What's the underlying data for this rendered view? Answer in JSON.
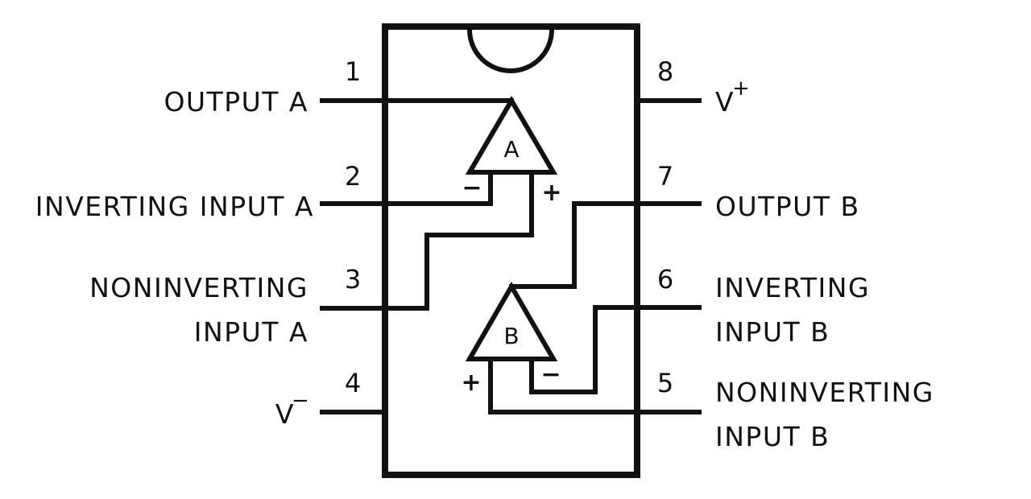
{
  "pins": {
    "p1": "1",
    "p2": "2",
    "p3": "3",
    "p4": "4",
    "p5": "5",
    "p6": "6",
    "p7": "7",
    "p8": "8"
  },
  "labels": {
    "output_a": "OUTPUT A",
    "inverting_input_a": "INVERTING INPUT A",
    "noninverting_input_a_line1": "NONINVERTING",
    "noninverting_input_a_line2": "INPUT A",
    "v_minus_base": "V",
    "v_minus_sup": "−",
    "v_plus_base": "V",
    "v_plus_sup": "+",
    "output_b": "OUTPUT B",
    "inverting_input_b_line1": "INVERTING",
    "inverting_input_b_line2": "INPUT B",
    "noninverting_input_b_line1": "NONINVERTING",
    "noninverting_input_b_line2": "INPUT B"
  },
  "amplifiers": {
    "a": {
      "name": "A",
      "minus": "−",
      "plus": "+"
    },
    "b": {
      "name": "B",
      "minus": "−",
      "plus": "+"
    }
  }
}
